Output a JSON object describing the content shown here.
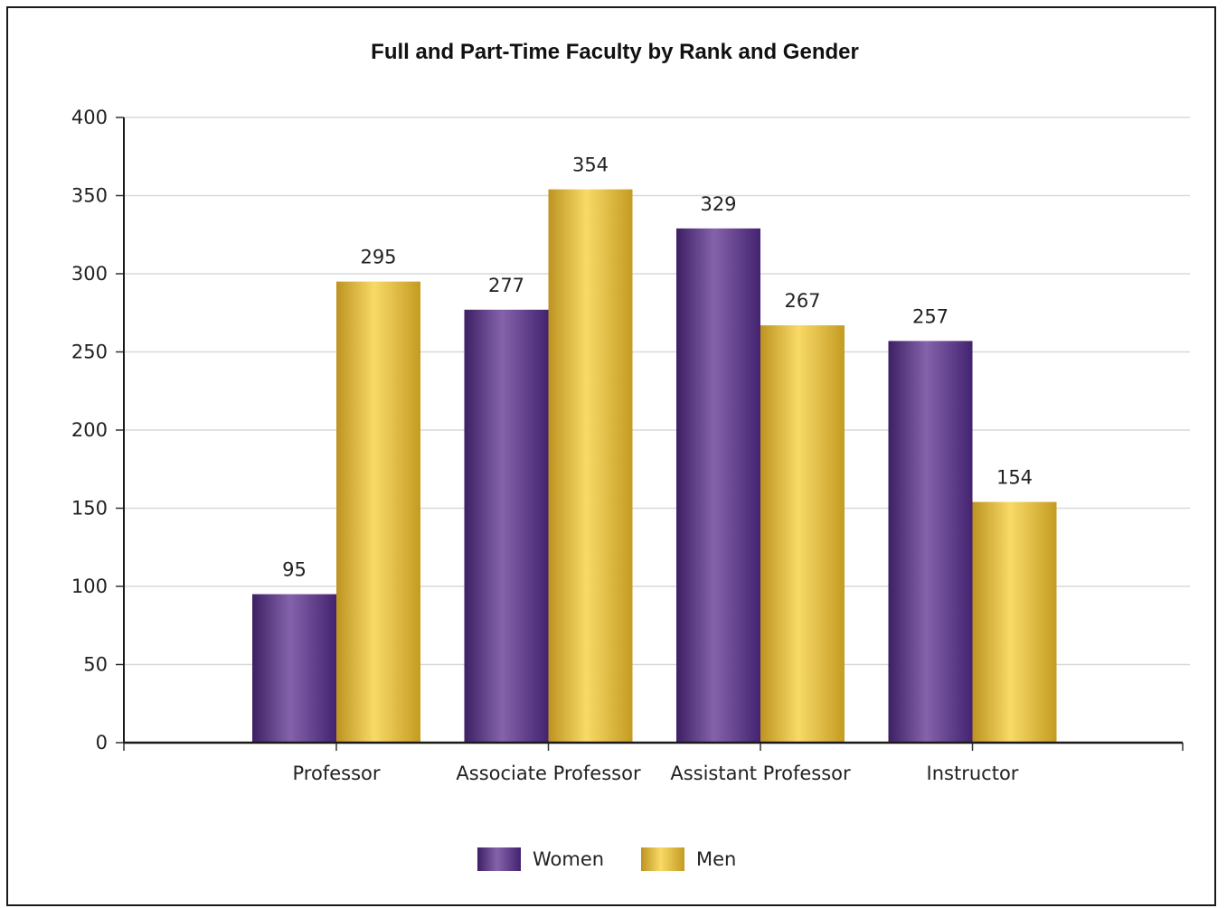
{
  "chart_data": {
    "type": "bar",
    "title": "Full and Part-Time Faculty by Rank and Gender",
    "categories": [
      "Professor",
      "Associate Professor",
      "Assistant Professor",
      "Instructor"
    ],
    "series": [
      {
        "name": "Women",
        "values": [
          95,
          277,
          329,
          257
        ],
        "color": "#5e3391"
      },
      {
        "name": "Men",
        "values": [
          295,
          354,
          267,
          154
        ],
        "color": "#e2b733"
      }
    ],
    "ylim": [
      0,
      400
    ],
    "yticks": [
      0,
      50,
      100,
      150,
      200,
      250,
      300,
      350,
      400
    ],
    "data_labels": true,
    "grid": true,
    "legend_position": "bottom"
  }
}
